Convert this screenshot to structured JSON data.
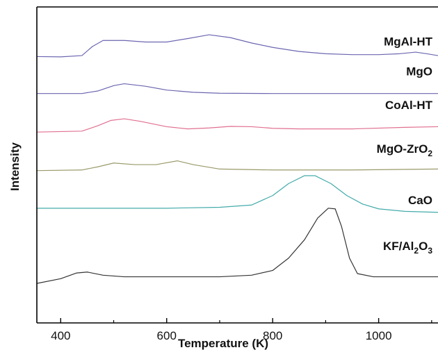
{
  "chart_data": {
    "type": "line",
    "xlabel": "Temperature (K)",
    "ylabel": "Intensity",
    "xlim": [
      355,
      1112
    ],
    "ylim": [
      0,
      100
    ],
    "x_ticks": [
      400,
      600,
      800,
      1000
    ],
    "y_ticks_shown": false,
    "legend": "none",
    "series_labels_position": "inline-right",
    "series": [
      {
        "name": "MgAl-HT",
        "label_parts": [
          {
            "t": "MgAl-HT"
          }
        ],
        "color": "#6b66b0",
        "label_y": 87.8,
        "points": [
          [
            355,
            84.3
          ],
          [
            400,
            84.2
          ],
          [
            440,
            84.6
          ],
          [
            460,
            87.5
          ],
          [
            480,
            89.4
          ],
          [
            520,
            89.4
          ],
          [
            560,
            88.9
          ],
          [
            600,
            88.9
          ],
          [
            640,
            90.0
          ],
          [
            680,
            91.2
          ],
          [
            720,
            90.3
          ],
          [
            760,
            88.6
          ],
          [
            800,
            87.2
          ],
          [
            850,
            85.9
          ],
          [
            900,
            85.2
          ],
          [
            950,
            84.9
          ],
          [
            1000,
            84.9
          ],
          [
            1040,
            85.2
          ],
          [
            1070,
            85.7
          ],
          [
            1090,
            85.2
          ],
          [
            1112,
            84.6
          ]
        ]
      },
      {
        "name": "MgO",
        "label_parts": [
          {
            "t": "MgO"
          }
        ],
        "color": "#6b66b0",
        "label_y": 78.4,
        "points": [
          [
            355,
            72.6
          ],
          [
            440,
            72.6
          ],
          [
            470,
            73.4
          ],
          [
            500,
            75.1
          ],
          [
            520,
            75.7
          ],
          [
            560,
            74.9
          ],
          [
            600,
            73.7
          ],
          [
            650,
            73.0
          ],
          [
            700,
            72.7
          ],
          [
            800,
            72.6
          ],
          [
            1000,
            72.6
          ],
          [
            1112,
            72.6
          ]
        ]
      },
      {
        "name": "CoAl-HT",
        "label_parts": [
          {
            "t": "CoAl-HT"
          }
        ],
        "color": "#e07090",
        "label_y": 67.7,
        "points": [
          [
            355,
            60.4
          ],
          [
            440,
            60.7
          ],
          [
            470,
            62.4
          ],
          [
            495,
            64.1
          ],
          [
            520,
            64.6
          ],
          [
            550,
            63.8
          ],
          [
            600,
            62.1
          ],
          [
            640,
            61.4
          ],
          [
            680,
            61.7
          ],
          [
            720,
            62.2
          ],
          [
            760,
            62.1
          ],
          [
            800,
            61.6
          ],
          [
            850,
            61.4
          ],
          [
            950,
            61.4
          ],
          [
            1050,
            61.9
          ],
          [
            1112,
            62.1
          ]
        ]
      },
      {
        "name": "MgO-ZrO2",
        "label_parts": [
          {
            "t": "MgO-ZrO"
          },
          {
            "t": "2",
            "sub": true
          }
        ],
        "color": "#9a9a6a",
        "label_y": 53.9,
        "points": [
          [
            355,
            48.2
          ],
          [
            440,
            48.4
          ],
          [
            470,
            49.4
          ],
          [
            500,
            50.6
          ],
          [
            540,
            50.1
          ],
          [
            580,
            50.1
          ],
          [
            620,
            51.3
          ],
          [
            650,
            50.1
          ],
          [
            700,
            48.7
          ],
          [
            800,
            48.4
          ],
          [
            950,
            48.4
          ],
          [
            1112,
            48.7
          ]
        ]
      },
      {
        "name": "CaO",
        "label_parts": [
          {
            "t": "CaO"
          }
        ],
        "color": "#44aaaa",
        "label_y": 37.6,
        "points": [
          [
            355,
            36.3
          ],
          [
            600,
            36.3
          ],
          [
            700,
            36.6
          ],
          [
            760,
            37.3
          ],
          [
            800,
            40.3
          ],
          [
            830,
            44.1
          ],
          [
            860,
            46.6
          ],
          [
            880,
            46.6
          ],
          [
            910,
            44.1
          ],
          [
            940,
            40.3
          ],
          [
            970,
            37.6
          ],
          [
            1000,
            36.1
          ],
          [
            1050,
            35.3
          ],
          [
            1112,
            35.0
          ]
        ]
      },
      {
        "name": "KF/Al2O3",
        "label_parts": [
          {
            "t": "KF/Al"
          },
          {
            "t": "2",
            "sub": true
          },
          {
            "t": "O"
          },
          {
            "t": "3",
            "sub": true
          }
        ],
        "color": "#333333",
        "label_y": 23.1,
        "points": [
          [
            355,
            12.5
          ],
          [
            400,
            14.0
          ],
          [
            430,
            15.8
          ],
          [
            450,
            16.1
          ],
          [
            480,
            15.1
          ],
          [
            520,
            14.6
          ],
          [
            600,
            14.6
          ],
          [
            700,
            14.6
          ],
          [
            760,
            15.1
          ],
          [
            800,
            16.6
          ],
          [
            830,
            20.5
          ],
          [
            860,
            26.3
          ],
          [
            885,
            33.2
          ],
          [
            905,
            36.3
          ],
          [
            918,
            36.1
          ],
          [
            930,
            30.5
          ],
          [
            945,
            20.5
          ],
          [
            960,
            15.6
          ],
          [
            990,
            14.6
          ],
          [
            1112,
            14.6
          ]
        ]
      }
    ]
  }
}
